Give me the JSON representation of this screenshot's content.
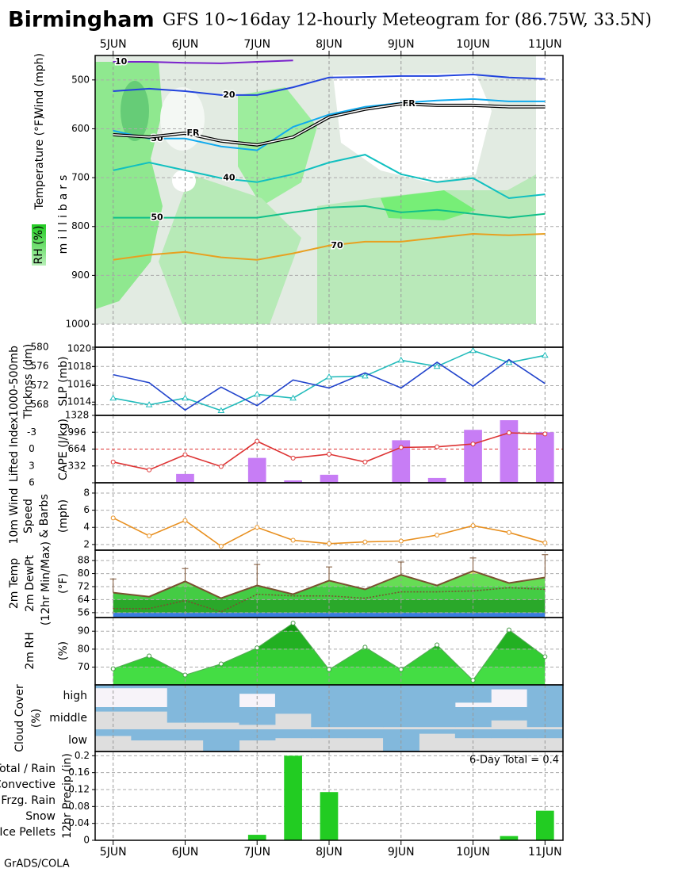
{
  "header": {
    "city": "Birmingham",
    "title": "GFS 10~16day 12-hourly Meteogram for (86.75W, 33.5N)",
    "footer": "GrADS/COLA"
  },
  "time_axis": {
    "categories": [
      "5JUN",
      null,
      "6JUN",
      null,
      "7JUN",
      null,
      "8JUN",
      null,
      "9JUN",
      null,
      "10JUN",
      null,
      "11JUN"
    ]
  },
  "chart_data": [
    {
      "type": "contour",
      "ylabel": [
        {
          "text": "Wind (mph)",
          "color": "#000000"
        },
        {
          "text": "Temperature (°F)",
          "color": "#e07020"
        },
        {
          "text": "millibars",
          "color": "#000000"
        },
        {
          "text": "RH (%)",
          "color": "#ffffff"
        }
      ],
      "ylim": [
        1047,
        450
      ],
      "yticks": [
        500,
        600,
        700,
        800,
        900,
        1000
      ],
      "grid": true,
      "series": [
        {
          "name": "10",
          "color": "#7a22cc",
          "values": [
            463,
            463,
            465,
            466,
            463,
            460,
            null,
            null,
            null,
            null,
            null,
            null,
            null
          ]
        },
        {
          "name": "20",
          "color": "#2244dd",
          "values": [
            523,
            518,
            523,
            531,
            531,
            515,
            495,
            494,
            492,
            492,
            489,
            495,
            498
          ]
        },
        {
          "name": "30",
          "color": "#11aaee",
          "values": [
            604,
            620,
            620,
            636,
            644,
            596,
            571,
            555,
            547,
            542,
            539,
            544,
            544
          ]
        },
        {
          "name": "40",
          "color": "#11c0c0",
          "values": [
            685,
            669,
            685,
            701,
            709,
            693,
            669,
            653,
            693,
            709,
            701,
            742,
            734
          ]
        },
        {
          "name": "50",
          "color": "#11c08a",
          "values": [
            782,
            782,
            782,
            782,
            782,
            771,
            761,
            758,
            771,
            766,
            774,
            782,
            774
          ]
        },
        {
          "name": "70",
          "color": "#e8a020",
          "values": [
            868,
            858,
            852,
            863,
            868,
            855,
            839,
            831,
            831,
            823,
            815,
            818,
            815
          ]
        },
        {
          "name": "FR",
          "color": "#000000",
          "values": [
            612,
            617,
            609,
            625,
            633,
            617,
            576,
            560,
            549,
            552,
            552,
            555,
            555
          ]
        }
      ]
    },
    {
      "type": "line",
      "ylabel": [
        {
          "text": "1000-500mb",
          "color": "#22bbbb"
        },
        {
          "text": "Thcknss (dm)",
          "color": "#22bbbb"
        },
        {
          "text": "SLP (mb)",
          "color": "#2244cc"
        }
      ],
      "ylim": [
        565.8,
        580
      ],
      "yticks": [
        568,
        572,
        576,
        580
      ],
      "y2lim": [
        1012.5,
        1020.2
      ],
      "y2ticks": [
        1014,
        1016,
        1018,
        1020
      ],
      "grid": true,
      "series": [
        {
          "color": "#22bbbb",
          "mark": "triangle",
          "values": [
            569.4,
            568,
            569.4,
            566.8,
            570.2,
            569.4,
            573.8,
            574,
            577.3,
            576,
            579.3,
            576.8,
            578.3
          ]
        },
        {
          "color": "#2244cc",
          "mark": "none",
          "axis": "y2",
          "values": [
            1017.1,
            1016.2,
            1013.1,
            1015.7,
            1013.6,
            1016.5,
            1015.6,
            1017.3,
            1015.6,
            1018.5,
            1015.8,
            1018.8,
            1016.1
          ]
        }
      ]
    },
    {
      "type": "combo",
      "ylabel": [
        {
          "text": "Lifted Index",
          "color": "#dd3333"
        },
        {
          "text": "CAPE (J/kg)",
          "color": "#b866ee"
        }
      ],
      "ylim": [
        6,
        -6
      ],
      "yticks": [
        -3,
        0,
        3,
        6
      ],
      "y2lim": [
        0,
        1328
      ],
      "y2ticks": [
        332,
        664,
        996,
        1328
      ],
      "grid": true,
      "series": [
        {
          "color": "#c77df5",
          "mark": "bar",
          "axis": "y2",
          "values": [
            0,
            0,
            174,
            0,
            490,
            47,
            158,
            0,
            838,
            95,
            1043,
            1233,
            996
          ]
        },
        {
          "color": "#dd3333",
          "mark": "circle",
          "values": [
            2.3,
            3.7,
            1,
            3.1,
            -1.4,
            1.6,
            0.9,
            2.3,
            -0.3,
            -0.4,
            -0.9,
            -2.9,
            -2.7
          ]
        }
      ]
    },
    {
      "type": "line",
      "ylabel": [
        {
          "text": "10m Wind",
          "color": "#e89020"
        },
        {
          "text": "Speed",
          "color": "#e89020"
        },
        {
          "text": "& Barbs",
          "color": "#000000"
        },
        {
          "text": "(mph)",
          "color": "#000000"
        }
      ],
      "ylim": [
        1.34,
        9.2
      ],
      "yticks": [
        2,
        4,
        6,
        8
      ],
      "grid": true,
      "series": [
        {
          "color": "#e89020",
          "mark": "circle",
          "values": [
            5.1,
            3.0,
            4.8,
            1.8,
            4.0,
            2.5,
            2.1,
            2.3,
            2.4,
            3.1,
            4.2,
            3.4,
            2.2
          ]
        }
      ]
    },
    {
      "type": "temperature",
      "ylabel": [
        {
          "text": "2m Temp",
          "color": "#7a5030"
        },
        {
          "text": "2m DewPt",
          "color": "#7a5030"
        },
        {
          "text": "(12hr Min/Max)",
          "color": "#7a5030"
        },
        {
          "text": "(°F)",
          "color": "#000000"
        }
      ],
      "ylim": [
        53,
        94.4
      ],
      "yticks": [
        56,
        64,
        72,
        80,
        88
      ],
      "grid": true,
      "band_colors": [
        "#3a7de0",
        "#2aa82a",
        "#44cc44",
        "#66dd55",
        "#ffff77"
      ],
      "color": "#7a5030",
      "temperature": [
        68.3,
        65.8,
        75.2,
        64.9,
        72.7,
        67.3,
        75.7,
        70.3,
        79.2,
        72.7,
        81.6,
        74.2,
        77.6
      ],
      "dewpoint": [
        58.5,
        58.5,
        63.4,
        56.5,
        67.3,
        66.3,
        66.3,
        64.9,
        68.8,
        68.8,
        69.3,
        71.3,
        70.3
      ],
      "max": [
        76.7,
        null,
        83.1,
        null,
        85.6,
        null,
        84.1,
        null,
        87.1,
        null,
        89.6,
        null,
        91.6
      ]
    },
    {
      "type": "area",
      "ylabel": [
        {
          "text": "2m RH",
          "color": "#55cc55"
        },
        {
          "text": "(%)",
          "color": "#000000"
        }
      ],
      "ylim": [
        60.1,
        97.6
      ],
      "yticks": [
        70,
        80,
        90
      ],
      "grid": true,
      "band_colors": [
        "#44dd44",
        "#33cc33",
        "#22b022",
        "#119911"
      ],
      "color": "#55aa55",
      "values": [
        69.1,
        76.2,
        65.6,
        71.8,
        80.7,
        94.5,
        68.7,
        81.1,
        68.7,
        82.4,
        62.7,
        90.7,
        75.8
      ]
    },
    {
      "type": "cloud",
      "ylabel": [
        {
          "text": "Cloud Cover",
          "color": "#3377cc"
        },
        {
          "text": "(%)",
          "color": "#000000"
        }
      ],
      "color": "#82b8dc",
      "layers": [
        {
          "name": "high",
          "background": "#f7f3f9",
          "values": [
            15,
            15,
            100,
            100,
            40,
            100,
            100,
            100,
            100,
            100,
            80,
            20,
            100
          ]
        },
        {
          "name": "middle",
          "background": "#dedede",
          "values": [
            20,
            20,
            70,
            70,
            80,
            30,
            90,
            90,
            90,
            90,
            90,
            60,
            90
          ]
        },
        {
          "name": "low",
          "background": "#dedede",
          "values": [
            30,
            50,
            50,
            100,
            50,
            40,
            40,
            40,
            100,
            20,
            40,
            40,
            40
          ]
        }
      ]
    },
    {
      "type": "bar",
      "ylabel": [
        {
          "text": "12hr Precip (in)",
          "color": "#000000"
        }
      ],
      "ylim": [
        0,
        0.21
      ],
      "yticks": [
        0,
        0.04,
        0.08,
        0.12,
        0.16,
        0.2
      ],
      "grid": true,
      "color": "#22cc22",
      "annotation": "6-Day Total = 0.4",
      "legend": [
        {
          "name": "Total / Rain",
          "color": "#22cc22"
        },
        {
          "name": "Convective",
          "color": "#dd2222"
        },
        {
          "name": "Frzg. Rain",
          "color": "#ee8822"
        },
        {
          "name": "Snow",
          "color": "#3355ee"
        },
        {
          "name": "Ice Pellets",
          "color": "#22cccc"
        }
      ],
      "values": [
        0,
        0,
        0,
        0,
        0.013,
        0.2,
        0.114,
        0,
        0,
        0,
        0,
        0.01,
        0.07
      ]
    }
  ]
}
